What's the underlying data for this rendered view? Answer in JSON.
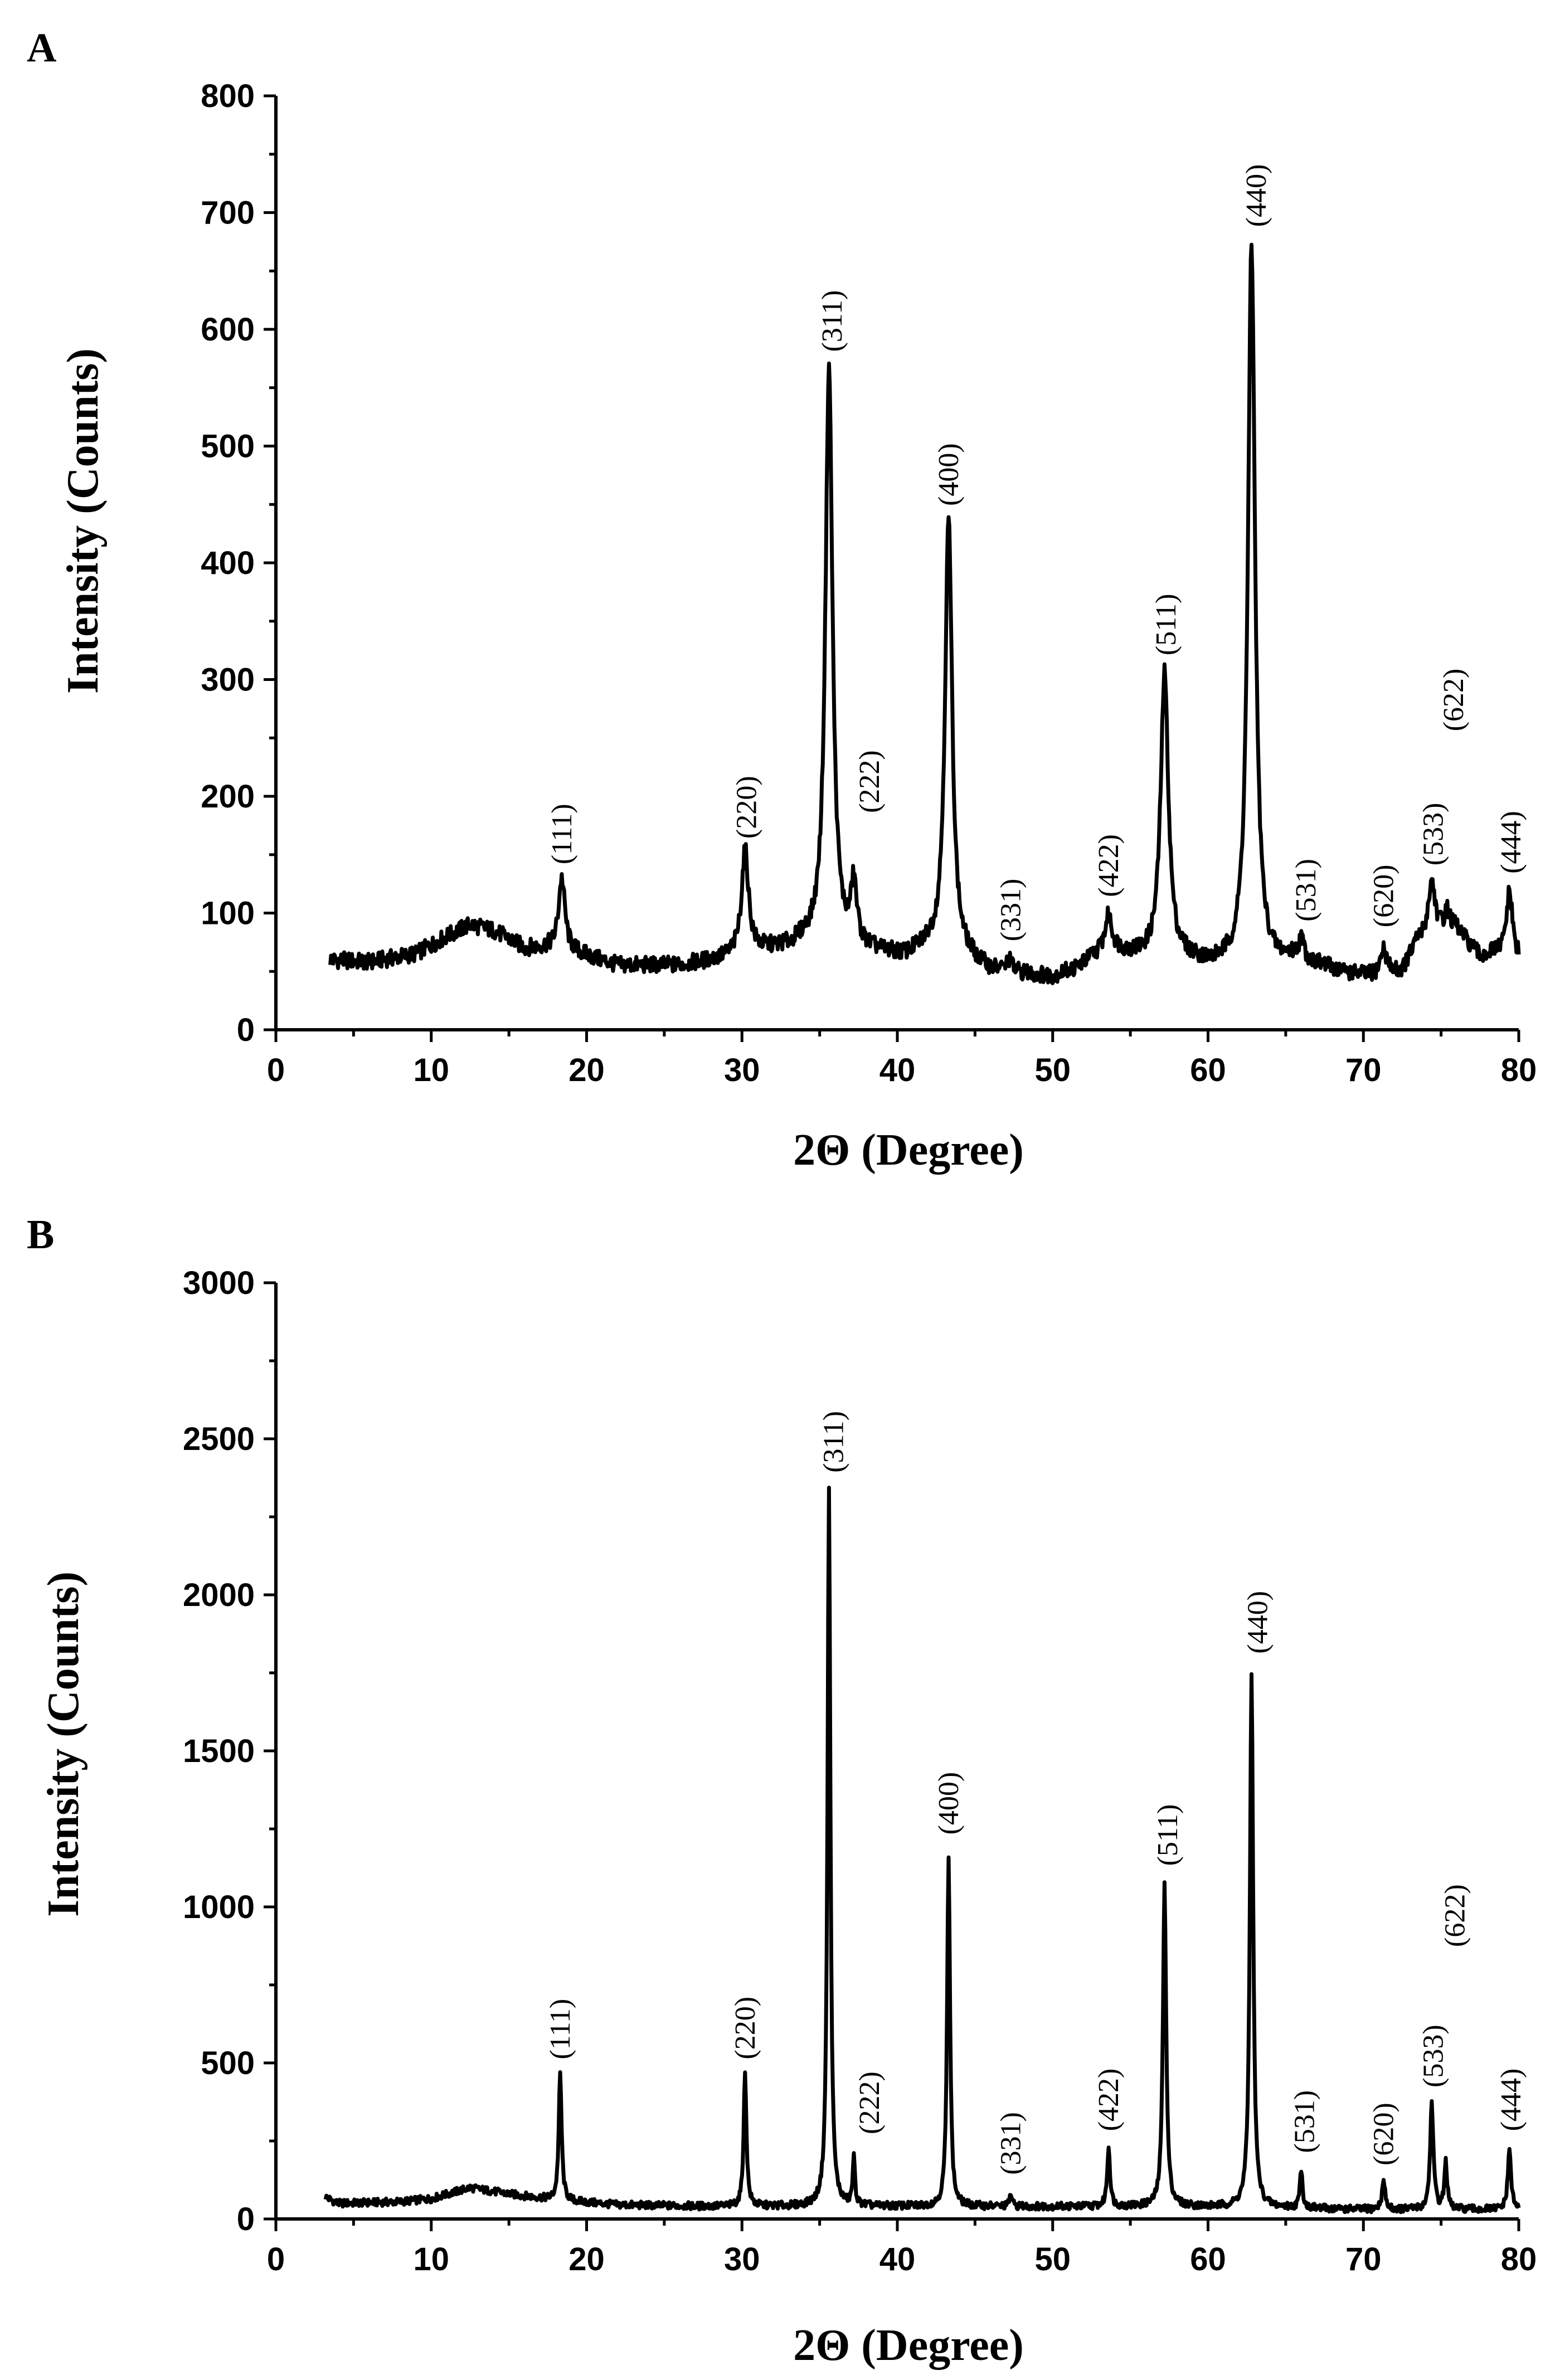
{
  "chart_data": [
    {
      "type": "line",
      "panel": "A",
      "title": "",
      "xlabel": "2Θ (Degree)",
      "ylabel": "Intensity (Counts)",
      "xlim": [
        0,
        80
      ],
      "ylim": [
        0,
        800
      ],
      "x_ticks": [
        "0",
        "10",
        "20",
        "30",
        "40",
        "50",
        "60",
        "70",
        "80"
      ],
      "y_ticks": [
        "0",
        "100",
        "200",
        "300",
        "400",
        "500",
        "600",
        "700",
        "800"
      ],
      "baseline": [
        [
          3.5,
          60
        ],
        [
          6,
          58
        ],
        [
          9,
          65
        ],
        [
          11,
          80
        ],
        [
          12.5,
          90
        ],
        [
          14,
          85
        ],
        [
          16,
          70
        ],
        [
          17.5,
          70
        ],
        [
          19.5,
          65
        ],
        [
          22,
          55
        ],
        [
          26,
          55
        ],
        [
          28.5,
          60
        ],
        [
          31.5,
          68
        ],
        [
          33,
          70
        ],
        [
          34,
          75
        ],
        [
          39,
          65
        ],
        [
          40.5,
          62
        ],
        [
          42,
          70
        ],
        [
          44.5,
          60
        ],
        [
          46,
          50
        ],
        [
          50,
          45
        ],
        [
          51.5,
          52
        ],
        [
          53.5,
          70
        ],
        [
          54.8,
          65
        ],
        [
          56,
          62
        ],
        [
          58.5,
          60
        ],
        [
          60,
          55
        ],
        [
          61,
          55
        ],
        [
          64.2,
          55
        ],
        [
          65.5,
          60
        ],
        [
          67,
          55
        ],
        [
          69,
          48
        ],
        [
          70.5,
          45
        ],
        [
          72.5,
          50
        ],
        [
          73.5,
          75
        ],
        [
          76,
          85
        ],
        [
          77.5,
          62
        ],
        [
          78.5,
          65
        ],
        [
          80,
          58
        ]
      ],
      "peaks": [
        {
          "label": "(111)",
          "x": 18.4,
          "y": 130,
          "w": 0.5
        },
        {
          "label": "(220)",
          "x": 30.2,
          "y": 153,
          "w": 0.55
        },
        {
          "label": "(311)",
          "x": 35.6,
          "y": 568,
          "w": 0.55
        },
        {
          "label": "(222)",
          "x": 37.2,
          "y": 120,
          "w": 0.45
        },
        {
          "label": "(400)",
          "x": 43.3,
          "y": 437,
          "w": 0.55
        },
        {
          "label": "(331)",
          "x": 47.2,
          "y": 58,
          "w": 0.4
        },
        {
          "label": "(422)",
          "x": 53.6,
          "y": 96,
          "w": 0.5
        },
        {
          "label": "(511)",
          "x": 57.2,
          "y": 305,
          "w": 0.6
        },
        {
          "label": "(440)",
          "x": 62.8,
          "y": 672,
          "w": 0.55
        },
        {
          "label": "(531)",
          "x": 66.0,
          "y": 75,
          "w": 0.4
        },
        {
          "label": "(620)",
          "x": 71.3,
          "y": 68,
          "w": 0.5
        },
        {
          "label": "(533)",
          "x": 74.4,
          "y": 126,
          "w": 0.55
        },
        {
          "label": "(622)",
          "x": 75.4,
          "y": 100,
          "w": 0.5
        },
        {
          "label": "(444)",
          "x": 79.4,
          "y": 117,
          "w": 0.5
        }
      ],
      "annotations": [
        {
          "text": "(111)",
          "x": 18.4,
          "y": 136
        },
        {
          "text": "(220)",
          "x": 30.3,
          "y": 158
        },
        {
          "text": "(311)",
          "x": 35.8,
          "y": 575
        },
        {
          "text": "(222)",
          "x": 38.2,
          "y": 180
        },
        {
          "text": "(400)",
          "x": 43.3,
          "y": 443
        },
        {
          "text": "(331)",
          "x": 47.3,
          "y": 70
        },
        {
          "text": "(422)",
          "x": 53.6,
          "y": 108
        },
        {
          "text": "(511)",
          "x": 57.3,
          "y": 315
        },
        {
          "text": "(440)",
          "x": 63.1,
          "y": 682
        },
        {
          "text": "(531)",
          "x": 66.3,
          "y": 87
        },
        {
          "text": "(620)",
          "x": 71.3,
          "y": 82
        },
        {
          "text": "(533)",
          "x": 74.5,
          "y": 135
        },
        {
          "text": "(622)",
          "x": 75.8,
          "y": 250
        },
        {
          "text": "(444)",
          "x": 79.5,
          "y": 128
        }
      ]
    },
    {
      "type": "line",
      "panel": "B",
      "title": "",
      "xlabel": "2Θ (Degree)",
      "ylabel": "Intensity (Counts)",
      "xlim": [
        0,
        80
      ],
      "ylim": [
        0,
        3000
      ],
      "x_ticks": [
        "0",
        "10",
        "20",
        "30",
        "40",
        "50",
        "60",
        "70",
        "80"
      ],
      "y_ticks": [
        "0",
        "500",
        "1000",
        "1500",
        "2000",
        "2500",
        "3000"
      ],
      "baseline": [
        [
          3.2,
          70
        ],
        [
          4,
          50
        ],
        [
          8,
          55
        ],
        [
          10,
          65
        ],
        [
          12.5,
          100
        ],
        [
          15,
          80
        ],
        [
          18,
          60
        ],
        [
          22,
          45
        ],
        [
          28,
          40
        ],
        [
          34,
          40
        ],
        [
          40,
          40
        ],
        [
          46,
          40
        ],
        [
          52,
          40
        ],
        [
          58,
          40
        ],
        [
          65,
          35
        ],
        [
          70,
          30
        ],
        [
          75,
          30
        ],
        [
          80,
          30
        ]
      ],
      "peaks": [
        {
          "label": "(111)",
          "x": 18.3,
          "y": 465,
          "w": 0.22
        },
        {
          "label": "(220)",
          "x": 30.2,
          "y": 465,
          "w": 0.22
        },
        {
          "label": "(311)",
          "x": 35.6,
          "y": 2340,
          "w": 0.22
        },
        {
          "label": "(222)",
          "x": 37.2,
          "y": 190,
          "w": 0.18
        },
        {
          "label": "(400)",
          "x": 43.3,
          "y": 1170,
          "w": 0.22
        },
        {
          "label": "(331)",
          "x": 47.3,
          "y": 80,
          "w": 0.18
        },
        {
          "label": "(422)",
          "x": 53.6,
          "y": 230,
          "w": 0.22
        },
        {
          "label": "(511)",
          "x": 57.2,
          "y": 1080,
          "w": 0.25
        },
        {
          "label": "(440)",
          "x": 62.8,
          "y": 1755,
          "w": 0.25
        },
        {
          "label": "(531)",
          "x": 66.0,
          "y": 160,
          "w": 0.2
        },
        {
          "label": "(620)",
          "x": 71.3,
          "y": 120,
          "w": 0.25
        },
        {
          "label": "(533)",
          "x": 74.4,
          "y": 370,
          "w": 0.25
        },
        {
          "label": "(622)",
          "x": 75.3,
          "y": 180,
          "w": 0.22
        },
        {
          "label": "(444)",
          "x": 79.4,
          "y": 220,
          "w": 0.25
        }
      ],
      "annotations": [
        {
          "text": "(111)",
          "x": 18.3,
          "y": 490
        },
        {
          "text": "(220)",
          "x": 30.2,
          "y": 490
        },
        {
          "text": "(311)",
          "x": 35.9,
          "y": 2370
        },
        {
          "text": "(222)",
          "x": 38.2,
          "y": 250
        },
        {
          "text": "(400)",
          "x": 43.3,
          "y": 1210
        },
        {
          "text": "(331)",
          "x": 47.3,
          "y": 120
        },
        {
          "text": "(422)",
          "x": 53.6,
          "y": 260
        },
        {
          "text": "(511)",
          "x": 57.4,
          "y": 1110
        },
        {
          "text": "(440)",
          "x": 63.2,
          "y": 1790
        },
        {
          "text": "(531)",
          "x": 66.2,
          "y": 190
        },
        {
          "text": "(620)",
          "x": 71.3,
          "y": 150
        },
        {
          "text": "(533)",
          "x": 74.5,
          "y": 400
        },
        {
          "text": "(622)",
          "x": 75.9,
          "y": 850
        },
        {
          "text": "(444)",
          "x": 79.5,
          "y": 260
        }
      ]
    }
  ]
}
